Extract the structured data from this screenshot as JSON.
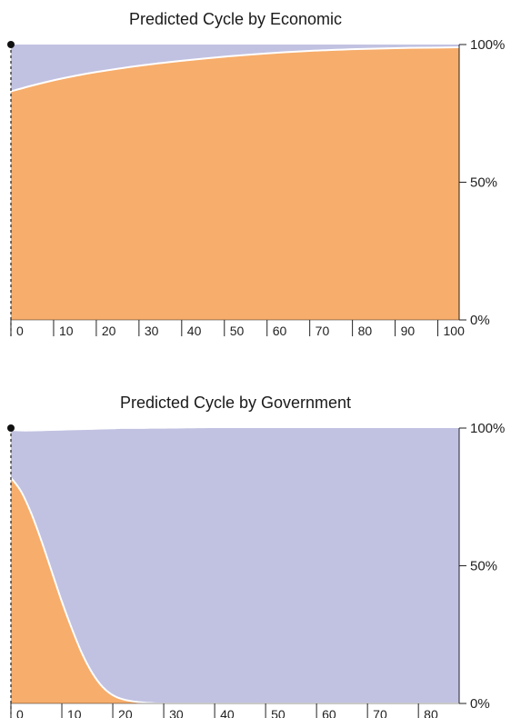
{
  "colors": {
    "orange": "#f7ad6b",
    "lavender": "#c1c2e2",
    "axis": "#222222",
    "boundary": "#ffffff"
  },
  "chart_data": [
    {
      "type": "area",
      "stacked": "percent",
      "title": "Predicted Cycle by Economic",
      "xlabel": "",
      "ylabel": "",
      "xlim": [
        0,
        105
      ],
      "ylim": [
        0,
        100
      ],
      "y_ticks": [
        "0%",
        "50%",
        "100%"
      ],
      "x_ticks": [
        0,
        10,
        20,
        30,
        40,
        50,
        60,
        70,
        80,
        90,
        100
      ],
      "x": [
        0,
        5,
        10,
        15,
        20,
        30,
        40,
        50,
        60,
        70,
        80,
        90,
        100,
        105
      ],
      "series": [
        {
          "color": "#f7ad6b",
          "values": [
            83,
            85.1,
            87,
            88.6,
            90,
            92.3,
            94.1,
            95.6,
            96.8,
            97.7,
            98.3,
            98.7,
            98.9,
            99
          ]
        },
        {
          "color": "#c1c2e2",
          "values": [
            17,
            14.9,
            13,
            11.4,
            10,
            7.7,
            5.9,
            4.4,
            3.2,
            2.3,
            1.7,
            1.3,
            1.1,
            1
          ]
        }
      ]
    },
    {
      "type": "area",
      "stacked": "percent",
      "title": "Predicted Cycle by Government",
      "xlabel": "",
      "ylabel": "",
      "xlim": [
        0,
        88
      ],
      "ylim": [
        0,
        100
      ],
      "y_ticks": [
        "0%",
        "50%",
        "100%"
      ],
      "x_ticks": [
        0,
        10,
        20,
        30,
        40,
        50,
        60,
        70,
        80
      ],
      "x": [
        0,
        2,
        4,
        6,
        8,
        10,
        12,
        14,
        16,
        18,
        20,
        22,
        25,
        28,
        30,
        40,
        50,
        60,
        70,
        80,
        88
      ],
      "series": [
        {
          "color": "#f7ad6b",
          "values": [
            82,
            77,
            69,
            59,
            48,
            37,
            27,
            18,
            11,
            6,
            3,
            1.5,
            0.5,
            0.1,
            0,
            0,
            0,
            0,
            0,
            0,
            0
          ]
        },
        {
          "color": "#c1c2e2",
          "values": [
            17,
            21.8,
            29.8,
            39.9,
            51,
            62.1,
            72.2,
            81.3,
            88.4,
            93.5,
            96.6,
            98.2,
            99.2,
            99.7,
            99.8,
            100,
            100,
            100,
            100,
            100,
            100
          ]
        }
      ]
    }
  ]
}
